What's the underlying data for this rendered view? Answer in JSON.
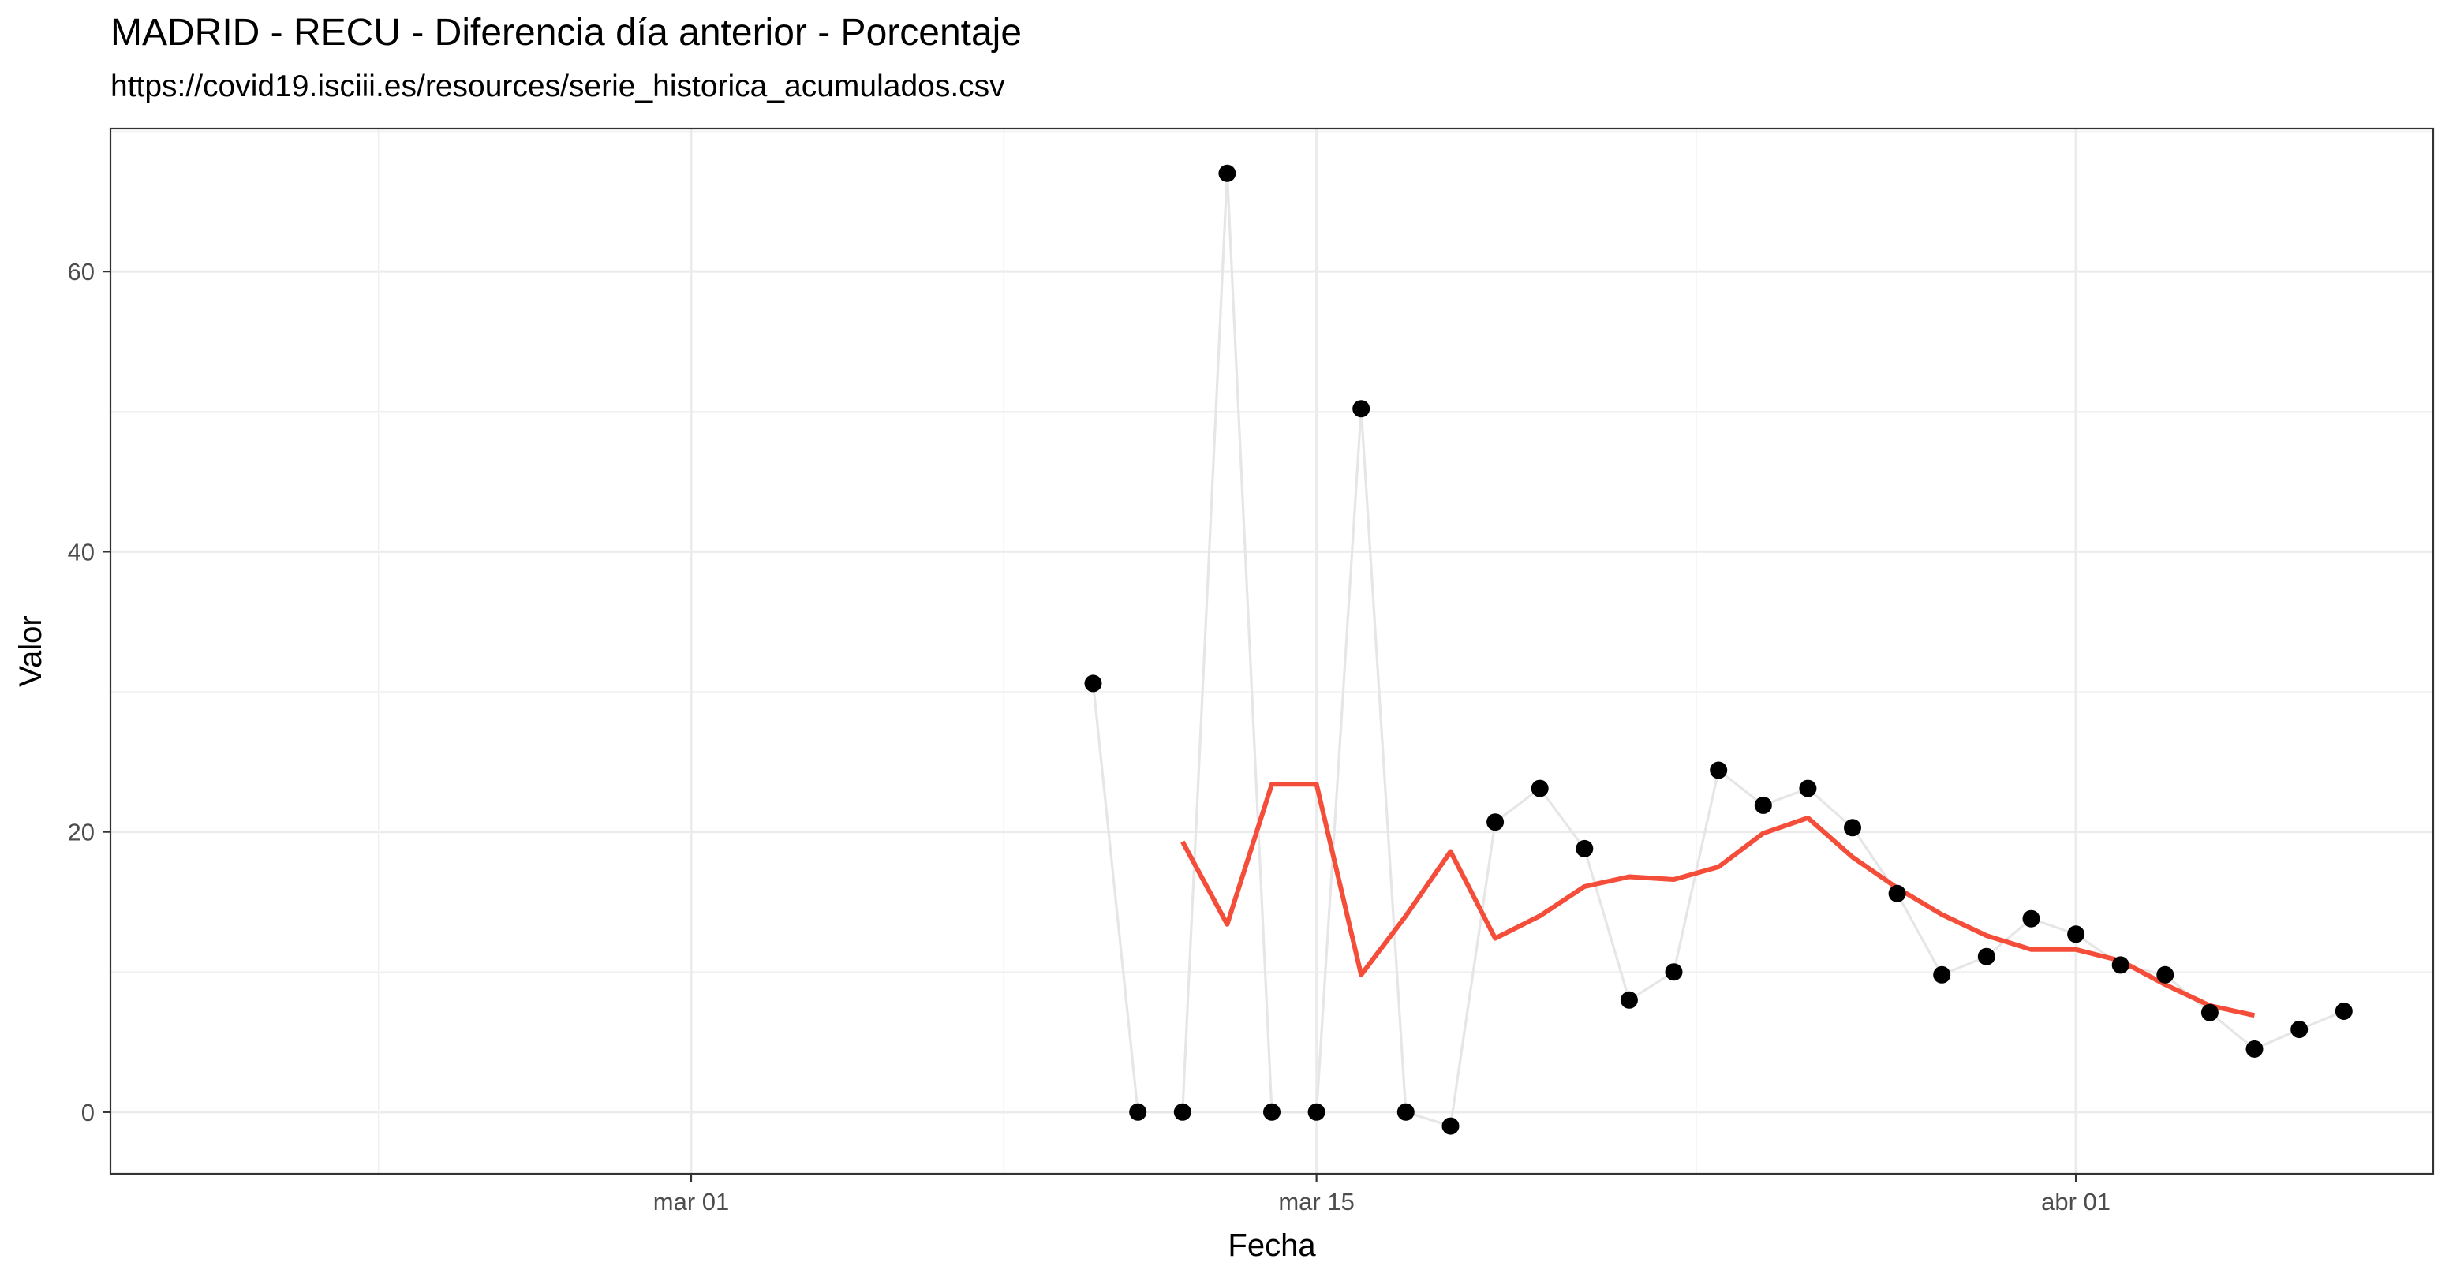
{
  "chart_data": {
    "type": "line",
    "title": "MADRID - RECU - Diferencia día anterior - Porcentaje",
    "subtitle": "https://covid19.isciii.es/resources/serie_historica_acumulados.csv",
    "xlabel": "Fecha",
    "ylabel": "Valor",
    "x_ticks": [
      {
        "label": "mar 01",
        "date": "2020-03-01"
      },
      {
        "label": "mar 15",
        "date": "2020-03-15"
      },
      {
        "label": "abr 01",
        "date": "2020-04-01"
      }
    ],
    "xlim": [
      "2020-02-17",
      "2020-04-09"
    ],
    "y_ticks": [
      0,
      20,
      40,
      60
    ],
    "ylim": [
      -4.4,
      70.2
    ],
    "grid": true,
    "series": [
      {
        "style": "points-connected",
        "point_color": "#000000",
        "line_color": "#e6e6e6",
        "x": [
          "2020-03-10",
          "2020-03-11",
          "2020-03-12",
          "2020-03-13",
          "2020-03-14",
          "2020-03-15",
          "2020-03-16",
          "2020-03-17",
          "2020-03-18",
          "2020-03-19",
          "2020-03-20",
          "2020-03-21",
          "2020-03-22",
          "2020-03-23",
          "2020-03-24",
          "2020-03-25",
          "2020-03-26",
          "2020-03-27",
          "2020-03-28",
          "2020-03-29",
          "2020-03-30",
          "2020-03-31",
          "2020-04-01",
          "2020-04-02",
          "2020-04-03",
          "2020-04-04",
          "2020-04-05",
          "2020-04-06",
          "2020-04-07"
        ],
        "values": [
          30.6,
          0,
          0,
          67,
          0,
          0,
          50.2,
          0,
          -1,
          20.7,
          23.1,
          18.8,
          8,
          10,
          24.4,
          21.9,
          23.1,
          20.3,
          15.6,
          9.8,
          11.1,
          13.8,
          12.7,
          10.5,
          9.8,
          7.1,
          4.5,
          5.9,
          7.2
        ]
      },
      {
        "style": "line",
        "line_color": "#f44e3b",
        "x": [
          "2020-03-12",
          "2020-03-13",
          "2020-03-14",
          "2020-03-15",
          "2020-03-16",
          "2020-03-17",
          "2020-03-18",
          "2020-03-19",
          "2020-03-20",
          "2020-03-21",
          "2020-03-22",
          "2020-03-23",
          "2020-03-24",
          "2020-03-25",
          "2020-03-26",
          "2020-03-27",
          "2020-03-28",
          "2020-03-29",
          "2020-03-30",
          "2020-03-31",
          "2020-04-01",
          "2020-04-02",
          "2020-04-03",
          "2020-04-04",
          "2020-04-05"
        ],
        "values": [
          19.3,
          13.4,
          23.4,
          23.4,
          9.8,
          14,
          18.6,
          12.4,
          14,
          16.1,
          16.8,
          16.6,
          17.5,
          19.9,
          21,
          18.2,
          16,
          14.1,
          12.6,
          11.6,
          11.6,
          10.8,
          9.1,
          7.6,
          6.9
        ]
      }
    ]
  }
}
